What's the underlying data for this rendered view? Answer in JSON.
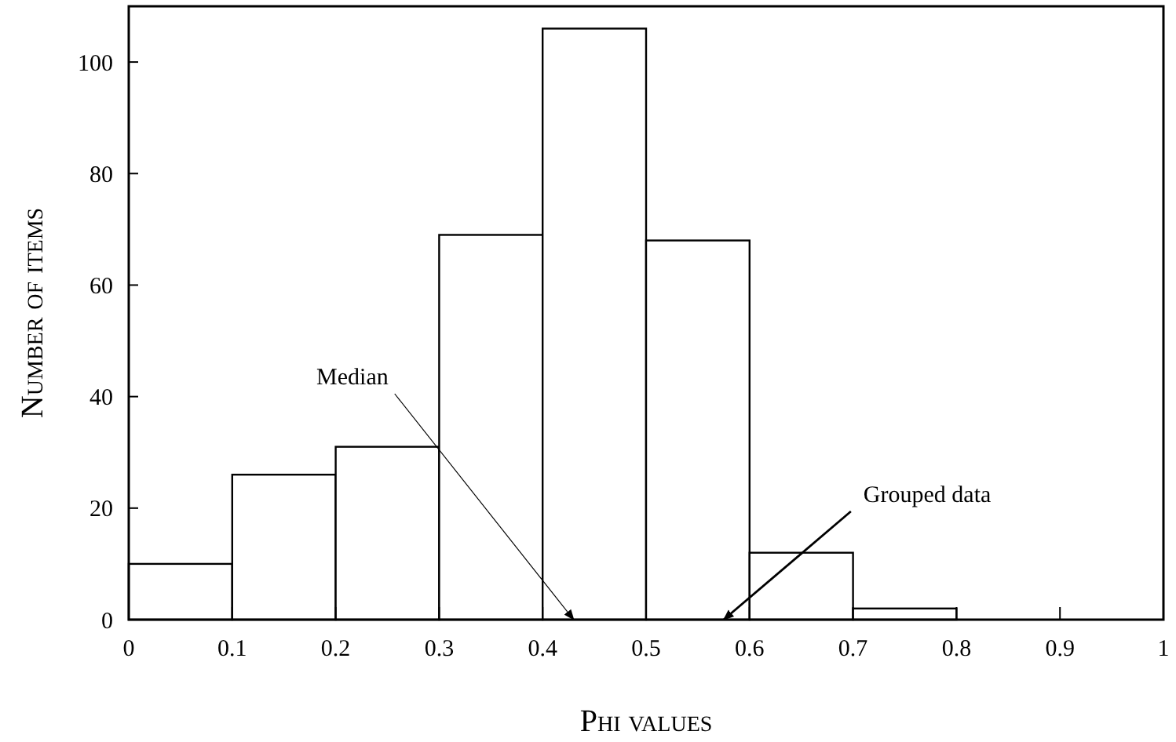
{
  "chart_data": {
    "type": "histogram",
    "xlabel": "Phi values",
    "ylabel": "Number of items",
    "bins": [
      0,
      0.1,
      0.2,
      0.3,
      0.4,
      0.5,
      0.6,
      0.7,
      0.8,
      0.9,
      1
    ],
    "values": [
      10,
      26,
      31,
      69,
      106,
      68,
      12,
      2,
      0,
      0
    ],
    "color": "#ffffff",
    "xlim": [
      0,
      1
    ],
    "xticks": [
      0,
      0.1,
      0.2,
      0.3,
      0.4,
      0.5,
      0.6,
      0.7,
      0.8,
      0.9,
      1
    ],
    "ylim": [
      0,
      110
    ],
    "yticks": [
      0,
      20,
      40,
      60,
      80,
      100
    ],
    "annotations": [
      {
        "text": "Median",
        "x": 0.43,
        "y": 0
      },
      {
        "text": "Grouped data",
        "x": 0.575,
        "y": 0
      }
    ]
  }
}
